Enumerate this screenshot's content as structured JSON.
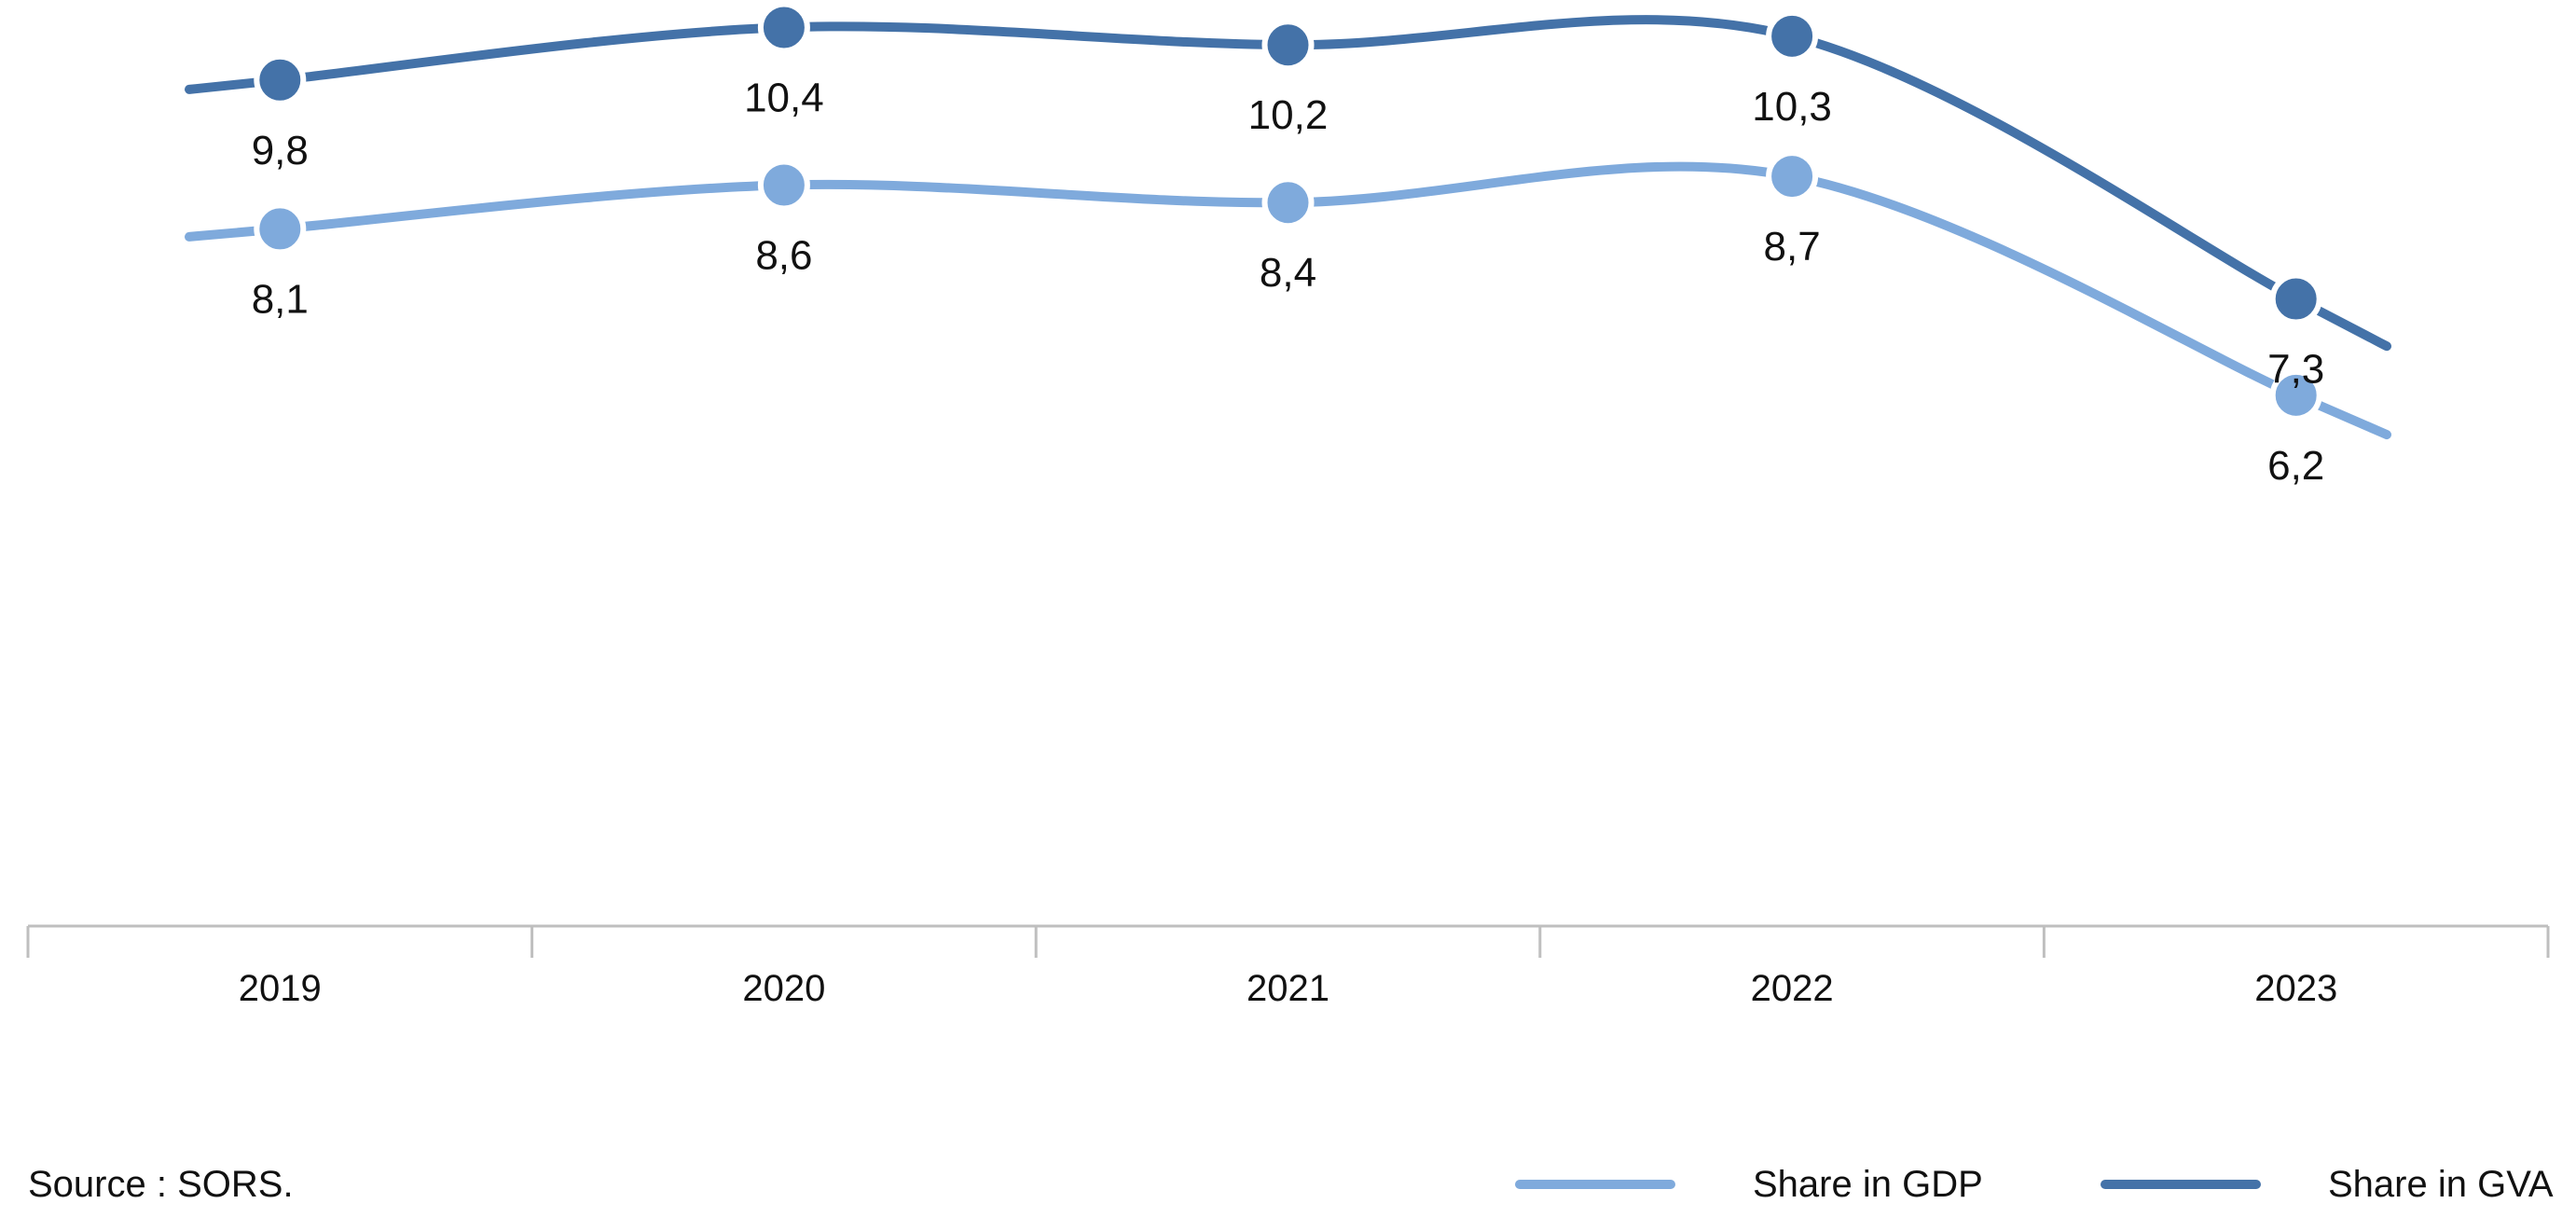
{
  "source": "Source : SORS.",
  "chart_data": {
    "type": "line",
    "title": "",
    "xlabel": "",
    "ylabel": "",
    "categories": [
      "2019",
      "2020",
      "2021",
      "2022",
      "2023"
    ],
    "series": [
      {
        "name": "Share in GDP",
        "values": [
          8.1,
          8.6,
          8.4,
          8.7,
          6.2
        ],
        "labels": [
          "8,1",
          "8,6",
          "8,4",
          "8,7",
          "6,2"
        ],
        "color": "#7FAADC"
      },
      {
        "name": "Share in GVA",
        "values": [
          9.8,
          10.4,
          10.2,
          10.3,
          7.3
        ],
        "labels": [
          "9,8",
          "10,4",
          "10,2",
          "10,3",
          "7,3"
        ],
        "color": "#4472A8"
      }
    ],
    "axis_color": "#BFBFBF",
    "grid": false,
    "legend_position": "bottom-right"
  }
}
